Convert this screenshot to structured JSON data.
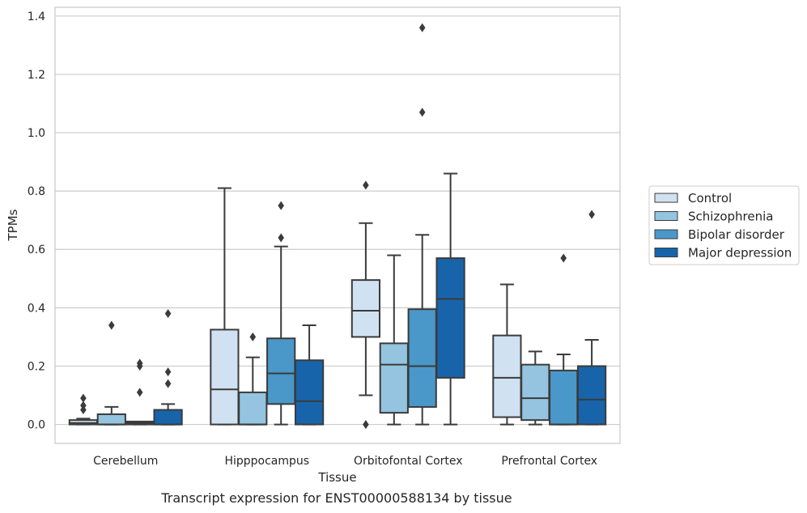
{
  "caption": "Transcript expression for ENST00000588134 by tissue",
  "chart_data": {
    "type": "box",
    "xlabel": "Tissue",
    "ylabel": "TPMs",
    "ylim": [
      -0.065,
      1.43
    ],
    "yticks": [
      0.0,
      0.2,
      0.4,
      0.6,
      0.8,
      1.0,
      1.2,
      1.4
    ],
    "ytick_labels": [
      "0.0",
      "0.2",
      "0.4",
      "0.6",
      "0.8",
      "1.0",
      "1.2",
      "1.4"
    ],
    "grid": "horizontal",
    "legend_position": "right",
    "categories": [
      "Cerebellum",
      "Hipppocampus",
      "Orbitofontal Cortex",
      "Prefrontal Cortex"
    ],
    "series": [
      {
        "name": "Control",
        "color": "#d0e1f2",
        "boxes": [
          {
            "whislo": 0.0,
            "q1": 0.0,
            "med": 0.005,
            "q3": 0.015,
            "whishi": 0.02,
            "fliers": [
              0.05,
              0.065,
              0.09
            ]
          },
          {
            "whislo": 0.0,
            "q1": 0.0,
            "med": 0.12,
            "q3": 0.325,
            "whishi": 0.81,
            "fliers": []
          },
          {
            "whislo": 0.1,
            "q1": 0.3,
            "med": 0.39,
            "q3": 0.495,
            "whishi": 0.69,
            "fliers": [
              0.0,
              0.82
            ]
          },
          {
            "whislo": 0.0,
            "q1": 0.025,
            "med": 0.16,
            "q3": 0.305,
            "whishi": 0.48,
            "fliers": []
          }
        ]
      },
      {
        "name": "Schizophrenia",
        "color": "#94c4df",
        "boxes": [
          {
            "whislo": 0.0,
            "q1": 0.0,
            "med": 0.0,
            "q3": 0.035,
            "whishi": 0.06,
            "fliers": [
              0.34
            ]
          },
          {
            "whislo": 0.0,
            "q1": 0.0,
            "med": 0.0,
            "q3": 0.11,
            "whishi": 0.23,
            "fliers": [
              0.3
            ]
          },
          {
            "whislo": 0.0,
            "q1": 0.04,
            "med": 0.205,
            "q3": 0.278,
            "whishi": 0.58,
            "fliers": []
          },
          {
            "whislo": 0.0,
            "q1": 0.015,
            "med": 0.09,
            "q3": 0.205,
            "whishi": 0.25,
            "fliers": []
          }
        ]
      },
      {
        "name": "Bipolar disorder",
        "color": "#4a98c9",
        "boxes": [
          {
            "whislo": 0.0,
            "q1": 0.0,
            "med": 0.005,
            "q3": 0.01,
            "whishi": 0.01,
            "fliers": [
              0.11,
              0.2,
              0.21
            ]
          },
          {
            "whislo": 0.0,
            "q1": 0.07,
            "med": 0.175,
            "q3": 0.295,
            "whishi": 0.61,
            "fliers": [
              0.64,
              0.75
            ]
          },
          {
            "whislo": 0.0,
            "q1": 0.06,
            "med": 0.2,
            "q3": 0.395,
            "whishi": 0.65,
            "fliers": [
              1.07,
              1.36
            ]
          },
          {
            "whislo": 0.0,
            "q1": 0.0,
            "med": 0.0,
            "q3": 0.185,
            "whishi": 0.24,
            "fliers": [
              0.57
            ]
          }
        ]
      },
      {
        "name": "Major depression",
        "color": "#1764ab",
        "boxes": [
          {
            "whislo": 0.0,
            "q1": 0.0,
            "med": 0.0,
            "q3": 0.05,
            "whishi": 0.07,
            "fliers": [
              0.14,
              0.18,
              0.38
            ]
          },
          {
            "whislo": 0.0,
            "q1": 0.0,
            "med": 0.08,
            "q3": 0.22,
            "whishi": 0.34,
            "fliers": []
          },
          {
            "whislo": 0.0,
            "q1": 0.16,
            "med": 0.43,
            "q3": 0.57,
            "whishi": 0.86,
            "fliers": []
          },
          {
            "whislo": 0.0,
            "q1": 0.0,
            "med": 0.085,
            "q3": 0.2,
            "whishi": 0.29,
            "fliers": [
              0.72
            ]
          }
        ]
      }
    ]
  }
}
